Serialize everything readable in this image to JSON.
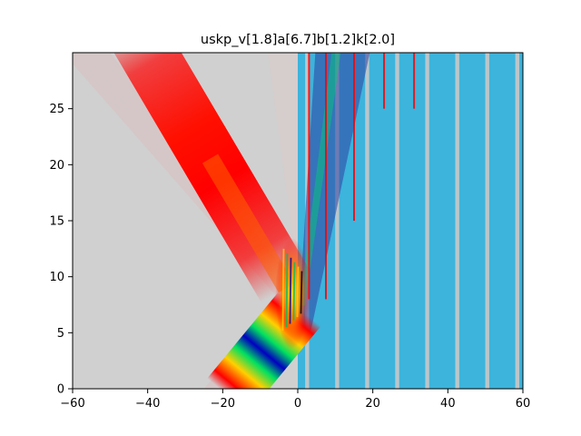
{
  "chart_data": {
    "type": "heatmap",
    "title": "uskp_v[1.8]a[6.7]b[1.2]k[2.0]",
    "xlabel": "",
    "ylabel": "",
    "xlim": [
      -60,
      60
    ],
    "ylim": [
      0,
      30
    ],
    "xticks": [
      -60,
      -40,
      -20,
      0,
      20,
      40,
      60
    ],
    "yticks": [
      0,
      5,
      10,
      15,
      20,
      25
    ],
    "grid": false,
    "colors": {
      "background_left": "#d0d0d0",
      "background_right": "#3cb4dc",
      "wave_red": "#ff0000",
      "wave_yellow": "#ffd000",
      "wave_green": "#00e060",
      "wave_blue": "#0000c0",
      "stripe": "#c8c8c8"
    },
    "features": {
      "incident_packet": {
        "start": [
          -17,
          0
        ],
        "end": [
          -1,
          6.5
        ]
      },
      "reflected_packet": {
        "start": [
          -3,
          9
        ],
        "end": [
          -40,
          30
        ]
      },
      "interaction_zone": {
        "x": [
          -4,
          1
        ],
        "y": [
          4,
          13
        ]
      },
      "transmitted_beam": {
        "start": [
          0,
          5
        ],
        "end": [
          10,
          30
        ]
      },
      "barrier_lines_x": [
        2.5,
        10.5,
        18.5,
        26.5,
        34.5,
        42.5,
        50.5,
        58.5
      ],
      "red_lines_x": [
        3,
        7.5,
        15,
        23,
        31
      ]
    }
  }
}
